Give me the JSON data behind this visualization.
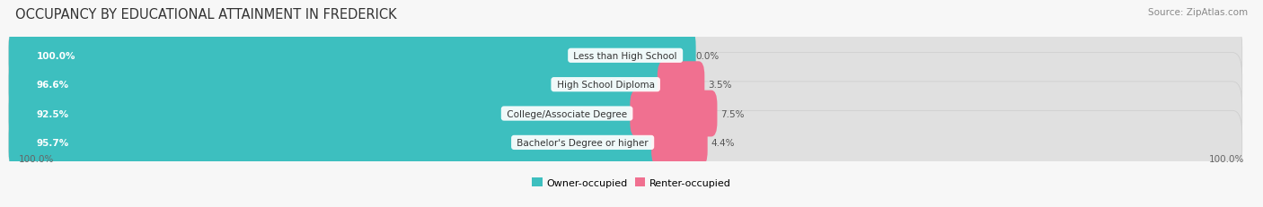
{
  "title": "OCCUPANCY BY EDUCATIONAL ATTAINMENT IN FREDERICK",
  "source": "Source: ZipAtlas.com",
  "categories": [
    "Less than High School",
    "High School Diploma",
    "College/Associate Degree",
    "Bachelor's Degree or higher"
  ],
  "owner_values": [
    100.0,
    96.6,
    92.5,
    95.7
  ],
  "renter_values": [
    0.0,
    3.5,
    7.5,
    4.4
  ],
  "owner_color": "#3DBFBF",
  "renter_color": "#F07090",
  "bar_bg_color": "#E0E0E0",
  "background_color": "#F7F7F7",
  "axis_label_left": "100.0%",
  "axis_label_right": "100.0%",
  "title_fontsize": 10.5,
  "source_fontsize": 7.5,
  "legend_fontsize": 8,
  "value_fontsize": 7.5,
  "cat_fontsize": 7.5,
  "bar_height": 0.6,
  "total_width": 100.0
}
